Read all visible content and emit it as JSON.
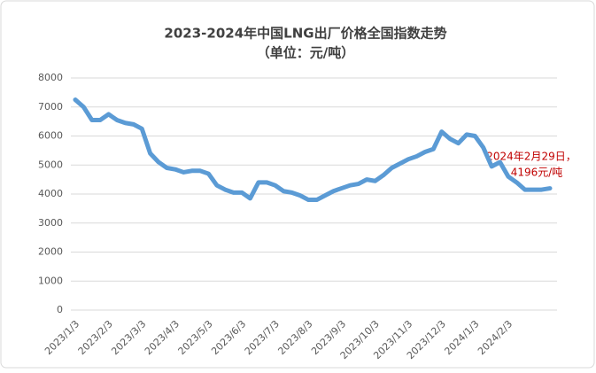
{
  "chart_data": {
    "type": "line",
    "title": "2023-2024年中国LNG出厂价格全国指数走势",
    "subtitle": "（单位：元/吨）",
    "categories": [
      "2023/1/3",
      null,
      null,
      null,
      "2023/2/3",
      null,
      null,
      null,
      "2023/3/3",
      null,
      null,
      null,
      "2023/4/3",
      null,
      null,
      null,
      "2023/5/3",
      null,
      null,
      null,
      "2023/6/3",
      null,
      null,
      null,
      "2023/7/3",
      null,
      null,
      null,
      "2023/8/3",
      null,
      null,
      null,
      "2023/9/3",
      null,
      null,
      null,
      "2023/10/3",
      null,
      null,
      null,
      "2023/11/3",
      null,
      null,
      null,
      "2023/12/3",
      null,
      null,
      null,
      "2024/1/3",
      null,
      null,
      null,
      "2024/2/3",
      null,
      null,
      null,
      null,
      null
    ],
    "series": [
      {
        "name": "LNG出厂价格全国指数",
        "color": "#5b9bd5",
        "values": [
          7250,
          7000,
          6550,
          6550,
          6750,
          6550,
          6450,
          6400,
          6250,
          5400,
          5100,
          4900,
          4850,
          4750,
          4800,
          4800,
          4700,
          4300,
          4150,
          4050,
          4050,
          3850,
          4400,
          4400,
          4300,
          4100,
          4050,
          3950,
          3800,
          3800,
          3950,
          4100,
          4200,
          4300,
          4350,
          4500,
          4450,
          4650,
          4900,
          5050,
          5200,
          5300,
          5450,
          5550,
          6150,
          5900,
          5750,
          6050,
          6000,
          5600,
          4950,
          5100,
          4600,
          4400,
          4150,
          4150,
          4150,
          4196
        ]
      }
    ],
    "annotation": [
      "2024年2月29日，",
      "4196元/吨"
    ],
    "ylim": [
      0,
      8000
    ],
    "yticks": [
      0,
      1000,
      2000,
      3000,
      4000,
      5000,
      6000,
      7000,
      8000
    ],
    "grid": true
  }
}
